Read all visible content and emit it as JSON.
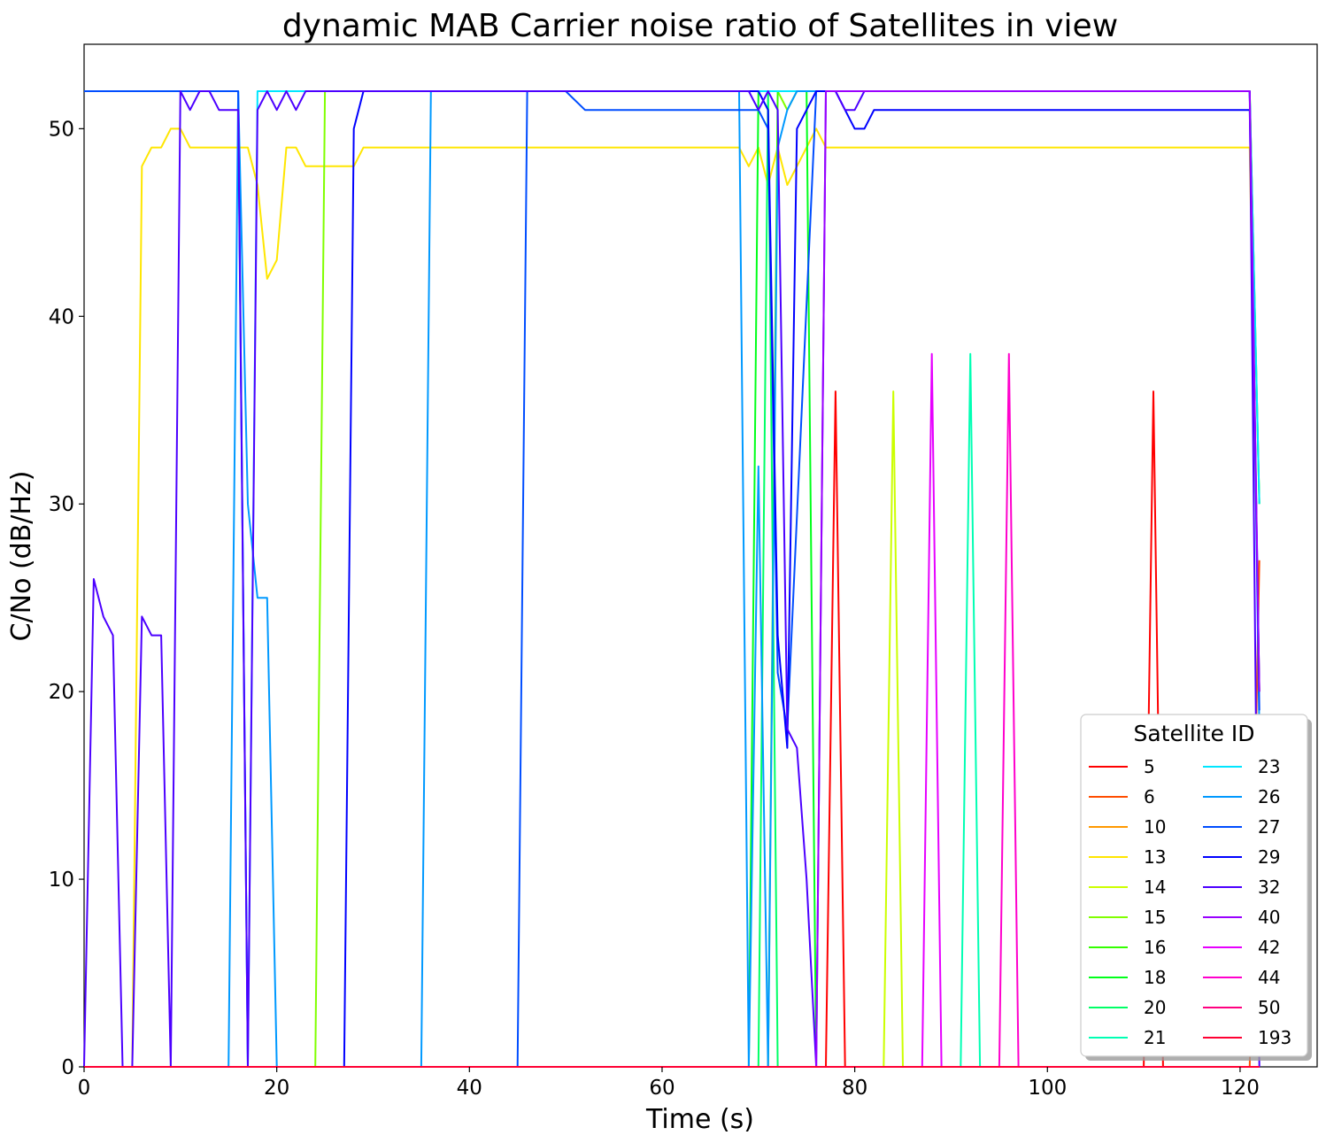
{
  "chart_data": {
    "type": "line",
    "title": "dynamic MAB Carrier noise ratio of Satellites in view",
    "xlabel": "Time (s)",
    "ylabel": "C/No (dB/Hz)",
    "xlim": [
      0,
      128
    ],
    "ylim": [
      0,
      54.5
    ],
    "xticks": [
      0,
      20,
      40,
      60,
      80,
      100,
      120
    ],
    "yticks": [
      0,
      10,
      20,
      30,
      40,
      50
    ],
    "grid": false,
    "legend": {
      "title": "Satellite ID",
      "placement": "lower-right",
      "columns": 2
    },
    "series": [
      {
        "name": "5",
        "color": "#ff0000",
        "points": [
          [
            0,
            0
          ],
          [
            77,
            0
          ],
          [
            78,
            36
          ],
          [
            79,
            0
          ],
          [
            110,
            0
          ],
          [
            111,
            36
          ],
          [
            112,
            0
          ],
          [
            122,
            0
          ]
        ]
      },
      {
        "name": "6",
        "color": "#ff4d00",
        "points": [
          [
            0,
            0
          ],
          [
            121,
            0
          ],
          [
            122,
            27
          ]
        ]
      },
      {
        "name": "10",
        "color": "#ff9900",
        "points": [
          [
            0,
            0
          ],
          [
            122,
            0
          ]
        ]
      },
      {
        "name": "13",
        "color": "#ffe600",
        "points": [
          [
            0,
            0
          ],
          [
            5,
            0
          ],
          [
            6,
            48
          ],
          [
            7,
            49
          ],
          [
            8,
            49
          ],
          [
            9,
            50
          ],
          [
            10,
            50
          ],
          [
            11,
            49
          ],
          [
            16,
            49
          ],
          [
            17,
            49
          ],
          [
            18,
            47
          ],
          [
            19,
            42
          ],
          [
            20,
            43
          ],
          [
            21,
            49
          ],
          [
            22,
            49
          ],
          [
            23,
            48
          ],
          [
            28,
            48
          ],
          [
            29,
            49
          ],
          [
            68,
            49
          ],
          [
            69,
            48
          ],
          [
            70,
            49
          ],
          [
            71,
            47
          ],
          [
            72,
            49
          ],
          [
            73,
            47
          ],
          [
            74,
            48
          ],
          [
            75,
            49
          ],
          [
            76,
            50
          ],
          [
            77,
            49
          ],
          [
            121,
            49
          ],
          [
            122,
            20
          ]
        ]
      },
      {
        "name": "14",
        "color": "#ccff00",
        "points": [
          [
            0,
            0
          ],
          [
            83,
            0
          ],
          [
            84,
            36
          ],
          [
            85,
            0
          ],
          [
            122,
            0
          ]
        ]
      },
      {
        "name": "15",
        "color": "#80ff00",
        "points": [
          [
            0,
            0
          ],
          [
            24,
            0
          ],
          [
            25,
            52
          ],
          [
            70,
            52
          ],
          [
            71,
            52
          ],
          [
            72,
            52
          ],
          [
            73,
            51
          ],
          [
            74,
            52
          ],
          [
            121,
            52
          ],
          [
            122,
            30
          ]
        ]
      },
      {
        "name": "16",
        "color": "#33ff00",
        "points": [
          [
            0,
            0
          ],
          [
            71,
            0
          ],
          [
            72,
            52
          ],
          [
            121,
            52
          ],
          [
            122,
            30
          ]
        ]
      },
      {
        "name": "18",
        "color": "#00ff1a",
        "points": [
          [
            0,
            0
          ],
          [
            69,
            0
          ],
          [
            70,
            52
          ],
          [
            75,
            52
          ],
          [
            76,
            0
          ],
          [
            122,
            0
          ]
        ]
      },
      {
        "name": "20",
        "color": "#00ff66",
        "points": [
          [
            0,
            0
          ],
          [
            70,
            0
          ],
          [
            71,
            52
          ],
          [
            72,
            0
          ],
          [
            122,
            0
          ]
        ]
      },
      {
        "name": "21",
        "color": "#00ffb3",
        "points": [
          [
            0,
            0
          ],
          [
            91,
            0
          ],
          [
            92,
            38
          ],
          [
            93,
            0
          ],
          [
            122,
            0
          ]
        ]
      },
      {
        "name": "23",
        "color": "#00e6ff",
        "points": [
          [
            0,
            52
          ],
          [
            16,
            52
          ],
          [
            17,
            0
          ],
          [
            18,
            52
          ],
          [
            121,
            52
          ],
          [
            122,
            30
          ]
        ]
      },
      {
        "name": "26",
        "color": "#0099ff",
        "points": [
          [
            0,
            0
          ],
          [
            15,
            0
          ],
          [
            16,
            52
          ],
          [
            17,
            30
          ],
          [
            18,
            25
          ],
          [
            19,
            25
          ],
          [
            20,
            0
          ],
          [
            35,
            0
          ],
          [
            36,
            52
          ],
          [
            68,
            52
          ],
          [
            69,
            0
          ],
          [
            70,
            32
          ],
          [
            71,
            0
          ],
          [
            72,
            49
          ],
          [
            73,
            51
          ],
          [
            74,
            52
          ],
          [
            121,
            52
          ],
          [
            122,
            18
          ]
        ]
      },
      {
        "name": "27",
        "color": "#004dff",
        "points": [
          [
            0,
            52
          ],
          [
            16,
            52
          ],
          [
            17,
            0
          ],
          [
            45,
            0
          ],
          [
            46,
            52
          ],
          [
            50,
            52
          ],
          [
            52,
            51
          ],
          [
            70,
            51
          ],
          [
            71,
            50
          ],
          [
            72,
            21
          ],
          [
            73,
            18
          ],
          [
            76,
            52
          ],
          [
            121,
            52
          ],
          [
            122,
            19
          ]
        ]
      },
      {
        "name": "29",
        "color": "#0000ff",
        "points": [
          [
            0,
            0
          ],
          [
            27,
            0
          ],
          [
            28,
            50
          ],
          [
            29,
            52
          ],
          [
            70,
            52
          ],
          [
            71,
            51
          ],
          [
            72,
            23
          ],
          [
            73,
            17
          ],
          [
            74,
            50
          ],
          [
            75,
            51
          ],
          [
            76,
            52
          ],
          [
            78,
            52
          ],
          [
            79,
            51
          ],
          [
            80,
            50
          ],
          [
            81,
            50
          ],
          [
            82,
            51
          ],
          [
            121,
            51
          ],
          [
            122,
            20
          ]
        ]
      },
      {
        "name": "32",
        "color": "#4c00ff",
        "points": [
          [
            0,
            0
          ],
          [
            1,
            26
          ],
          [
            2,
            24
          ],
          [
            3,
            23
          ],
          [
            4,
            0
          ],
          [
            5,
            0
          ],
          [
            6,
            24
          ],
          [
            7,
            23
          ],
          [
            8,
            23
          ],
          [
            9,
            0
          ],
          [
            10,
            52
          ],
          [
            11,
            51
          ],
          [
            12,
            52
          ],
          [
            13,
            52
          ],
          [
            14,
            51
          ],
          [
            16,
            51
          ],
          [
            17,
            0
          ],
          [
            18,
            51
          ],
          [
            19,
            52
          ],
          [
            20,
            51
          ],
          [
            21,
            52
          ],
          [
            22,
            51
          ],
          [
            23,
            52
          ],
          [
            69,
            52
          ],
          [
            70,
            51
          ],
          [
            71,
            52
          ],
          [
            72,
            51
          ],
          [
            73,
            18
          ],
          [
            74,
            17
          ],
          [
            75,
            10
          ],
          [
            76,
            0
          ],
          [
            77,
            52
          ],
          [
            78,
            52
          ],
          [
            79,
            51
          ],
          [
            80,
            51
          ],
          [
            81,
            52
          ],
          [
            121,
            52
          ],
          [
            122,
            0
          ]
        ]
      },
      {
        "name": "40",
        "color": "#9900ff",
        "points": [
          [
            0,
            0
          ],
          [
            76,
            0
          ],
          [
            77,
            52
          ],
          [
            78,
            52
          ],
          [
            121,
            52
          ],
          [
            122,
            20
          ]
        ]
      },
      {
        "name": "42",
        "color": "#e600ff",
        "points": [
          [
            0,
            0
          ],
          [
            87,
            0
          ],
          [
            88,
            38
          ],
          [
            89,
            0
          ],
          [
            122,
            0
          ]
        ]
      },
      {
        "name": "44",
        "color": "#ff00cc",
        "points": [
          [
            0,
            0
          ],
          [
            95,
            0
          ],
          [
            96,
            38
          ],
          [
            97,
            0
          ],
          [
            122,
            0
          ]
        ]
      },
      {
        "name": "50",
        "color": "#ff0080",
        "points": [
          [
            0,
            0
          ],
          [
            122,
            0
          ]
        ]
      },
      {
        "name": "193",
        "color": "#ff0033",
        "points": [
          [
            0,
            0
          ],
          [
            122,
            0
          ]
        ]
      }
    ]
  }
}
